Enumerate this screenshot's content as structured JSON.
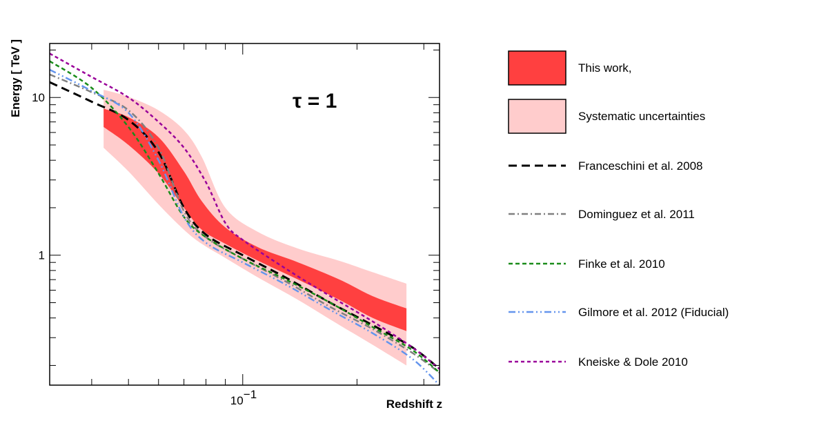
{
  "chart_data": {
    "type": "line",
    "title": "",
    "annotation": "τ = 1",
    "xlabel": "Redshift z",
    "ylabel": "Energy [ TeV ]",
    "xscale": "log",
    "yscale": "log",
    "xlim": [
      0.031,
      0.33
    ],
    "ylim": [
      0.15,
      22
    ],
    "x_ticks": [
      {
        "value": 0.1,
        "base": "10",
        "exp": "−1"
      }
    ],
    "y_ticks": [
      {
        "value": 1,
        "label": "1"
      },
      {
        "value": 10,
        "label": "10"
      }
    ],
    "bands": [
      {
        "name": "Systematic uncertainties",
        "color": "#ffcccc",
        "x": [
          0.043,
          0.05,
          0.06,
          0.07,
          0.078,
          0.09,
          0.11,
          0.14,
          0.18,
          0.22,
          0.27
        ],
        "upper": [
          11.2,
          10.1,
          8.3,
          6.2,
          4.2,
          2.0,
          1.4,
          1.1,
          0.92,
          0.78,
          0.66
        ],
        "lower": [
          4.8,
          3.4,
          2.1,
          1.45,
          1.18,
          0.96,
          0.72,
          0.52,
          0.36,
          0.27,
          0.2
        ]
      },
      {
        "name": "This work,",
        "color": "#ff4040",
        "x": [
          0.043,
          0.05,
          0.06,
          0.07,
          0.078,
          0.09,
          0.11,
          0.14,
          0.18,
          0.22,
          0.27
        ],
        "upper": [
          8.5,
          7.5,
          5.6,
          3.4,
          2.2,
          1.5,
          1.12,
          0.9,
          0.7,
          0.55,
          0.46
        ],
        "lower": [
          6.5,
          5.0,
          3.3,
          2.0,
          1.45,
          1.18,
          0.92,
          0.7,
          0.52,
          0.4,
          0.33
        ]
      }
    ],
    "series": [
      {
        "name": "Franceschini et al. 2008",
        "color": "#000000",
        "style": "long-dash",
        "x": [
          0.031,
          0.04,
          0.05,
          0.06,
          0.07,
          0.08,
          0.1,
          0.13,
          0.17,
          0.22,
          0.28,
          0.33
        ],
        "y": [
          12.5,
          9.4,
          7.2,
          4.5,
          2.0,
          1.35,
          1.0,
          0.72,
          0.5,
          0.36,
          0.26,
          0.19
        ]
      },
      {
        "name": "Dominguez et al. 2011",
        "color": "#808080",
        "style": "dash-dot",
        "x": [
          0.031,
          0.04,
          0.05,
          0.06,
          0.07,
          0.08,
          0.1,
          0.13,
          0.17,
          0.22,
          0.28,
          0.33
        ],
        "y": [
          14.0,
          10.8,
          8.3,
          4.8,
          1.9,
          1.3,
          0.95,
          0.68,
          0.47,
          0.34,
          0.24,
          0.18
        ]
      },
      {
        "name": "Finke et al. 2010",
        "color": "#1a8c1a",
        "style": "dash",
        "x": [
          0.031,
          0.04,
          0.05,
          0.06,
          0.07,
          0.08,
          0.1,
          0.13,
          0.17,
          0.22,
          0.28,
          0.33
        ],
        "y": [
          17.0,
          11.5,
          6.5,
          3.3,
          1.75,
          1.3,
          0.95,
          0.7,
          0.5,
          0.35,
          0.25,
          0.18
        ]
      },
      {
        "name": "Gilmore et al. 2012 (Fiducial)",
        "color": "#6495ed",
        "style": "dash-dot-dot",
        "x": [
          0.031,
          0.04,
          0.05,
          0.06,
          0.07,
          0.08,
          0.1,
          0.13,
          0.17,
          0.22,
          0.28,
          0.33
        ],
        "y": [
          15.0,
          11.0,
          8.0,
          4.0,
          1.75,
          1.2,
          0.9,
          0.65,
          0.45,
          0.32,
          0.22,
          0.15
        ]
      },
      {
        "name": "Kneiske & Dole 2010",
        "color": "#990099",
        "style": "short-dash",
        "x": [
          0.031,
          0.04,
          0.05,
          0.06,
          0.07,
          0.08,
          0.09,
          0.1,
          0.13,
          0.17,
          0.22,
          0.28,
          0.33
        ],
        "y": [
          19.0,
          13.5,
          10.0,
          7.0,
          4.8,
          2.9,
          1.6,
          1.25,
          0.82,
          0.55,
          0.38,
          0.26,
          0.19
        ]
      }
    ],
    "legend": {
      "position": "right",
      "entries": [
        {
          "label": "This work,",
          "kind": "box",
          "color": "#ff4040"
        },
        {
          "label": "Systematic uncertainties",
          "kind": "box",
          "color": "#ffcccc"
        },
        {
          "label": "Franceschini et al. 2008",
          "kind": "line",
          "color": "#000000",
          "style": "long-dash"
        },
        {
          "label": "Dominguez et al. 2011",
          "kind": "line",
          "color": "#808080",
          "style": "dash-dot"
        },
        {
          "label": "Finke et al. 2010",
          "kind": "line",
          "color": "#1a8c1a",
          "style": "dash"
        },
        {
          "label": "Gilmore et al. 2012 (Fiducial)",
          "kind": "line",
          "color": "#6495ed",
          "style": "dash-dot-dot"
        },
        {
          "label": "Kneiske & Dole 2010",
          "kind": "line",
          "color": "#990099",
          "style": "short-dash"
        }
      ]
    }
  }
}
